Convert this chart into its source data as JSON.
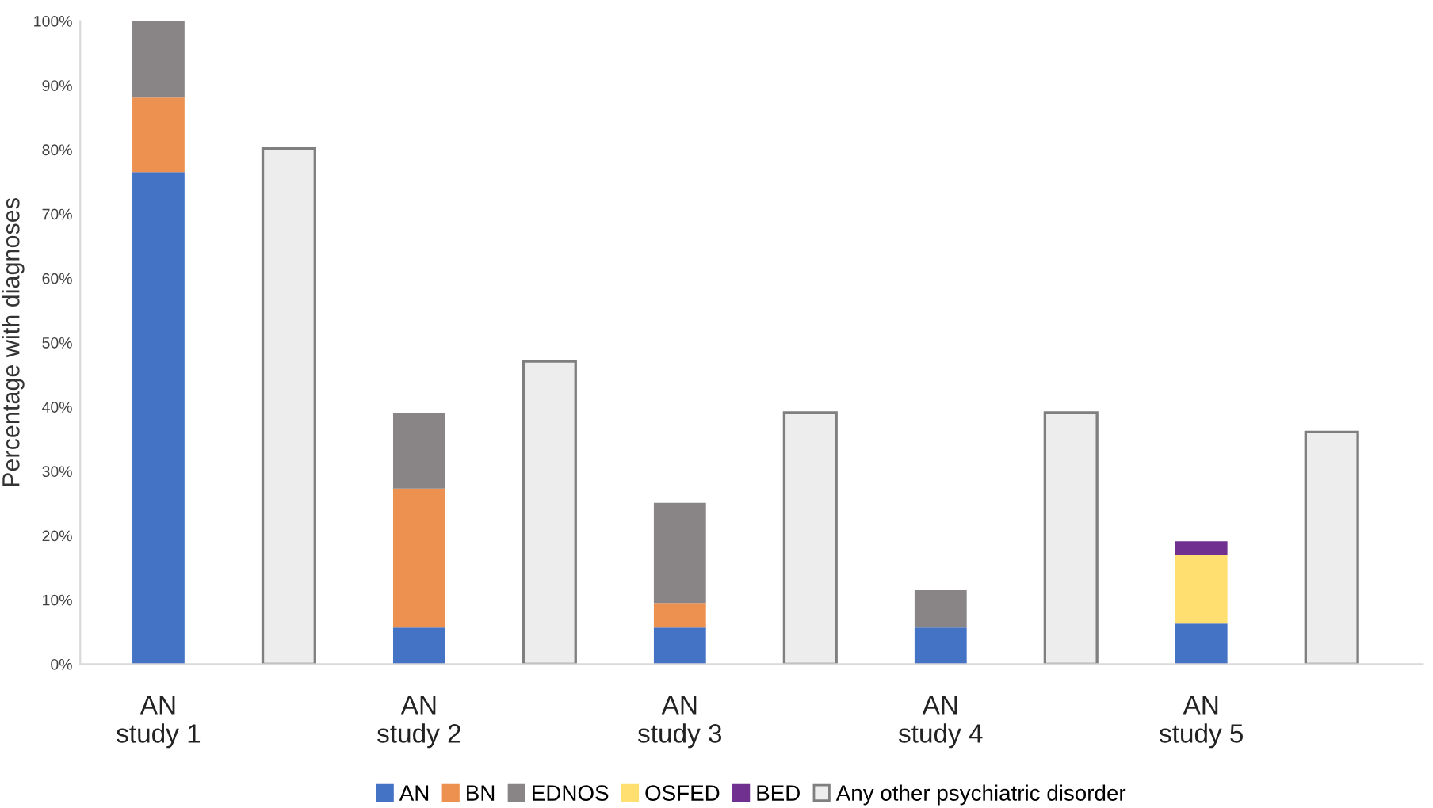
{
  "chart_data": {
    "type": "bar",
    "stacked": true,
    "ylabel": "Percentage with diagnoses",
    "categories": [
      "AN\nstudy 1",
      null,
      "AN\nstudy 2",
      null,
      "AN\nstudy 3",
      null,
      "AN\nstudy 4",
      null,
      "AN\nstudy 5",
      null
    ],
    "series": [
      {
        "name": "AN",
        "color": "#4472c4",
        "values": [
          76.5,
          null,
          5.7,
          null,
          5.7,
          null,
          5.7,
          null,
          6.3,
          null
        ]
      },
      {
        "name": "BN",
        "color": "#ed9150",
        "values": [
          11.6,
          null,
          21.6,
          null,
          3.8,
          null,
          null,
          null,
          null,
          null
        ]
      },
      {
        "name": "EDNOS",
        "color": "#898586",
        "values": [
          11.9,
          null,
          11.8,
          null,
          15.6,
          null,
          5.8,
          null,
          null,
          null
        ]
      },
      {
        "name": "OSFED",
        "color": "#ffdf6f",
        "values": [
          null,
          null,
          null,
          null,
          null,
          null,
          null,
          null,
          10.7,
          null
        ]
      },
      {
        "name": "BED",
        "color": "#70308f",
        "values": [
          null,
          null,
          null,
          null,
          null,
          null,
          null,
          null,
          2.1,
          null
        ]
      },
      {
        "name": "Any other psychiatric disorder",
        "color": "#ededed",
        "values": [
          null,
          80.2,
          null,
          47.1,
          null,
          39.1,
          null,
          39.1,
          null,
          36.1
        ]
      }
    ],
    "ylim": [
      0,
      100
    ],
    "yticks": [
      {
        "value": 0,
        "label": "0%"
      },
      {
        "value": 10,
        "label": "10%"
      },
      {
        "value": 20,
        "label": "20%"
      },
      {
        "value": 30,
        "label": "30%"
      },
      {
        "value": 40,
        "label": "40%"
      },
      {
        "value": 50,
        "label": "50%"
      },
      {
        "value": 60,
        "label": "60%"
      },
      {
        "value": 70,
        "label": "70%"
      },
      {
        "value": 80,
        "label": "80%"
      },
      {
        "value": 90,
        "label": "90%"
      },
      {
        "value": 100,
        "label": "100%"
      }
    ],
    "grid": false,
    "legend": "bottom"
  }
}
